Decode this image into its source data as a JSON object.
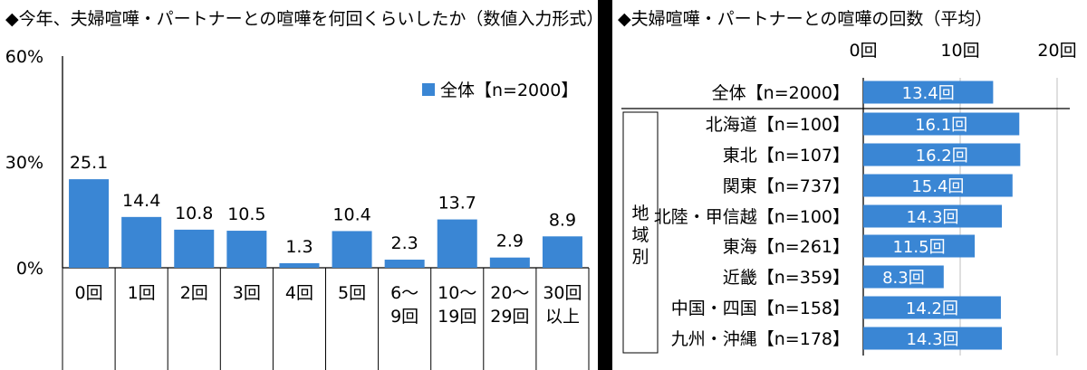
{
  "colors": {
    "bar": "#3a86d4",
    "axis": "#000000",
    "grid": "#bfbfbf",
    "bar_label_text": "#ffffff"
  },
  "chart_data": [
    {
      "type": "bar",
      "title": "◆今年、夫婦喧嘩・パートナーとの喧嘩を何回くらいしたか（数値入力形式）",
      "categories": [
        "0回",
        "1回",
        "2回",
        "3回",
        "4回",
        "5回",
        "6～9回",
        "10～19回",
        "20～29回",
        "30回以上"
      ],
      "category_lines": [
        [
          "0回"
        ],
        [
          "1回"
        ],
        [
          "2回"
        ],
        [
          "3回"
        ],
        [
          "4回"
        ],
        [
          "5回"
        ],
        [
          "6～",
          "9回"
        ],
        [
          "10～",
          "19回"
        ],
        [
          "20～",
          "29回"
        ],
        [
          "30回",
          "以上"
        ]
      ],
      "series": [
        {
          "name": "全体【n=2000】",
          "values": [
            25.1,
            14.4,
            10.8,
            10.5,
            1.3,
            10.4,
            2.3,
            13.7,
            2.9,
            8.9
          ]
        }
      ],
      "yticks": [
        "60%",
        "30%",
        "0%"
      ],
      "ylim": [
        0,
        60
      ],
      "unit": "%",
      "legend_position": "top-right",
      "grid": false
    },
    {
      "type": "bar",
      "orientation": "horizontal",
      "title": "◆夫婦喧嘩・パートナーとの喧嘩の回数（平均）",
      "categories": [
        "全体【n=2000】",
        "北海道【n=100】",
        "東北【n=107】",
        "関東【n=737】",
        "北陸・甲信越【n=100】",
        "東海【n=261】",
        "近畿【n=359】",
        "中国・四国【n=158】",
        "九州・沖縄【n=178】"
      ],
      "values": [
        13.4,
        16.1,
        16.2,
        15.4,
        14.3,
        11.5,
        8.3,
        14.2,
        14.3
      ],
      "value_labels": [
        "13.4回",
        "16.1回",
        "16.2回",
        "15.4回",
        "14.3回",
        "11.5回",
        "8.3回",
        "14.2回",
        "14.3回"
      ],
      "xticks": [
        "0回",
        "10回",
        "20回"
      ],
      "xlim": [
        0,
        20
      ],
      "group_label": "地域別",
      "grid": true
    }
  ]
}
